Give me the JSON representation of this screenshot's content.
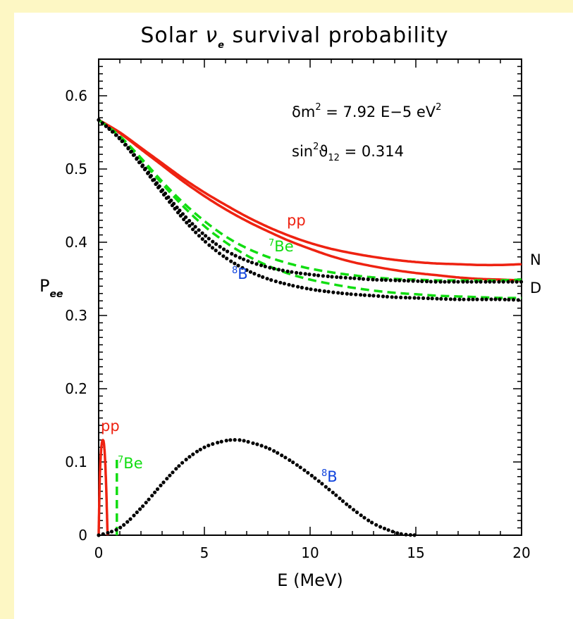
{
  "colors": {
    "background": "#ffffff",
    "left_strip": "#fdf7c4",
    "pp": "#ee2211",
    "be7": "#11dd11",
    "b8": "#000000",
    "b8_label": "#1144dd"
  },
  "chart_data": {
    "type": "line",
    "title": {
      "prefix": "Solar ",
      "symbol": "ν",
      "subscript": "e",
      "suffix": " survival probability"
    },
    "xlabel": "E  (MeV)",
    "ylabel": {
      "main": "P",
      "sub": "ee"
    },
    "xlim": [
      0,
      20
    ],
    "ylim": [
      0,
      0.65
    ],
    "xticks": [
      "0",
      "5",
      "10",
      "15",
      "20"
    ],
    "yticks": [
      "0",
      "0.1",
      "0.2",
      "0.3",
      "0.4",
      "0.5",
      "0.6"
    ],
    "annotations": {
      "dm2": {
        "lhs": "δm",
        "lhs_sup": "2",
        "eq": "  =  7.92 E−5 eV",
        "unit_sup": "2"
      },
      "sin2": {
        "lhs": "sin",
        "lhs_sup": "2",
        "theta": "ϑ",
        "theta_sub": "12",
        "eq": "  =  0.314"
      }
    },
    "labels": {
      "pp_upper": "pp",
      "be7_upper": {
        "sup": "7",
        "text": "Be"
      },
      "b8_upper": {
        "sup": "8",
        "text": "B"
      },
      "N": "N",
      "D": "D",
      "pp_lower": "pp",
      "be7_lower": {
        "sup": "7",
        "text": "Be"
      },
      "b8_lower": {
        "sup": "8",
        "text": "B"
      }
    },
    "series": [
      {
        "name": "pp (N)",
        "style": "solid",
        "color": "#ee2211",
        "x": [
          0,
          1,
          2,
          3,
          4,
          5,
          6,
          7,
          8,
          9,
          10,
          11,
          12,
          13,
          14,
          15,
          16,
          17,
          18,
          19,
          20
        ],
        "y": [
          0.567,
          0.55,
          0.529,
          0.508,
          0.487,
          0.468,
          0.451,
          0.435,
          0.421,
          0.409,
          0.399,
          0.391,
          0.385,
          0.38,
          0.376,
          0.373,
          0.371,
          0.37,
          0.369,
          0.369,
          0.37
        ]
      },
      {
        "name": "pp (D)",
        "style": "solid",
        "color": "#ee2211",
        "x": [
          0,
          1,
          2,
          3,
          4,
          5,
          6,
          7,
          8,
          9,
          10,
          11,
          12,
          13,
          14,
          15,
          16,
          17,
          18,
          19,
          20
        ],
        "y": [
          0.567,
          0.549,
          0.527,
          0.505,
          0.483,
          0.463,
          0.445,
          0.429,
          0.415,
          0.402,
          0.391,
          0.381,
          0.373,
          0.367,
          0.362,
          0.358,
          0.355,
          0.352,
          0.35,
          0.349,
          0.348
        ]
      },
      {
        "name": "7Be (N)",
        "style": "dashed",
        "color": "#11dd11",
        "x": [
          0,
          1,
          2,
          3,
          4,
          5,
          6,
          7,
          8,
          9,
          10,
          11,
          12,
          13,
          14,
          15,
          16,
          17,
          18,
          19,
          20
        ],
        "y": [
          0.567,
          0.545,
          0.515,
          0.483,
          0.454,
          0.429,
          0.408,
          0.392,
          0.38,
          0.371,
          0.364,
          0.359,
          0.355,
          0.352,
          0.35,
          0.349,
          0.348,
          0.348,
          0.348,
          0.348,
          0.349
        ]
      },
      {
        "name": "7Be (D)",
        "style": "dashed",
        "color": "#11dd11",
        "x": [
          0,
          1,
          2,
          3,
          4,
          5,
          6,
          7,
          8,
          9,
          10,
          11,
          12,
          13,
          14,
          15,
          16,
          17,
          18,
          19,
          20
        ],
        "y": [
          0.567,
          0.544,
          0.513,
          0.48,
          0.449,
          0.422,
          0.4,
          0.382,
          0.368,
          0.357,
          0.349,
          0.343,
          0.338,
          0.334,
          0.331,
          0.329,
          0.327,
          0.326,
          0.325,
          0.324,
          0.324
        ]
      },
      {
        "name": "8B (N)",
        "style": "dotted",
        "color": "#000000",
        "x": [
          0,
          1,
          2,
          3,
          4,
          5,
          6,
          7,
          8,
          9,
          10,
          11,
          12,
          13,
          14,
          15,
          16,
          17,
          18,
          19,
          20
        ],
        "y": [
          0.567,
          0.542,
          0.508,
          0.472,
          0.438,
          0.41,
          0.389,
          0.375,
          0.366,
          0.36,
          0.356,
          0.353,
          0.351,
          0.349,
          0.348,
          0.347,
          0.346,
          0.346,
          0.346,
          0.346,
          0.346
        ]
      },
      {
        "name": "8B (D)",
        "style": "dotted",
        "color": "#000000",
        "x": [
          0,
          1,
          2,
          3,
          4,
          5,
          6,
          7,
          8,
          9,
          10,
          11,
          12,
          13,
          14,
          15,
          16,
          17,
          18,
          19,
          20
        ],
        "y": [
          0.567,
          0.541,
          0.506,
          0.468,
          0.432,
          0.402,
          0.379,
          0.362,
          0.35,
          0.342,
          0.336,
          0.332,
          0.329,
          0.327,
          0.325,
          0.324,
          0.323,
          0.322,
          0.322,
          0.322,
          0.321
        ]
      },
      {
        "name": "pp spectrum",
        "style": "solid",
        "color": "#ee2211",
        "x": [
          0,
          0.05,
          0.1,
          0.15,
          0.2,
          0.25,
          0.3,
          0.35,
          0.4,
          0.42
        ],
        "y": [
          0,
          0.075,
          0.11,
          0.126,
          0.13,
          0.125,
          0.105,
          0.07,
          0.022,
          0
        ]
      },
      {
        "name": "7Be line",
        "style": "dashed",
        "color": "#11dd11",
        "x": [
          0.86,
          0.86
        ],
        "y": [
          0,
          0.108
        ]
      },
      {
        "name": "8B spectrum",
        "style": "dotted",
        "color": "#000000",
        "x": [
          0,
          1,
          2,
          3,
          4,
          5,
          6,
          6.6,
          7,
          8,
          9,
          10,
          11,
          12,
          13,
          14,
          14.5,
          15
        ],
        "y": [
          0,
          0.01,
          0.037,
          0.07,
          0.1,
          0.12,
          0.129,
          0.13,
          0.128,
          0.119,
          0.103,
          0.083,
          0.06,
          0.036,
          0.016,
          0.004,
          0.001,
          0
        ]
      }
    ]
  }
}
